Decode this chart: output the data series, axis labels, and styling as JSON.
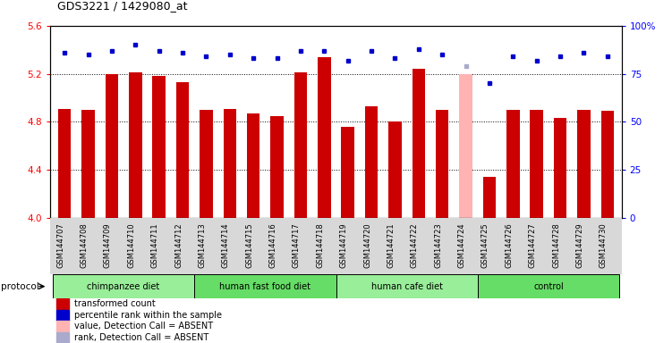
{
  "title": "GDS3221 / 1429080_at",
  "samples": [
    "GSM144707",
    "GSM144708",
    "GSM144709",
    "GSM144710",
    "GSM144711",
    "GSM144712",
    "GSM144713",
    "GSM144714",
    "GSM144715",
    "GSM144716",
    "GSM144717",
    "GSM144718",
    "GSM144719",
    "GSM144720",
    "GSM144721",
    "GSM144722",
    "GSM144723",
    "GSM144724",
    "GSM144725",
    "GSM144726",
    "GSM144727",
    "GSM144728",
    "GSM144729",
    "GSM144730"
  ],
  "bar_values": [
    4.91,
    4.9,
    5.2,
    5.21,
    5.18,
    5.13,
    4.9,
    4.91,
    4.87,
    4.85,
    5.21,
    5.34,
    4.76,
    4.93,
    4.8,
    5.24,
    4.9,
    5.2,
    4.34,
    4.9,
    4.9,
    4.83,
    4.9,
    4.89
  ],
  "bar_colors": [
    "#cc0000",
    "#cc0000",
    "#cc0000",
    "#cc0000",
    "#cc0000",
    "#cc0000",
    "#cc0000",
    "#cc0000",
    "#cc0000",
    "#cc0000",
    "#cc0000",
    "#cc0000",
    "#cc0000",
    "#cc0000",
    "#cc0000",
    "#cc0000",
    "#cc0000",
    "#ffb3b3",
    "#cc0000",
    "#cc0000",
    "#cc0000",
    "#cc0000",
    "#cc0000",
    "#cc0000"
  ],
  "rank_values": [
    86,
    85,
    87,
    90,
    87,
    86,
    84,
    85,
    83,
    83,
    87,
    87,
    82,
    87,
    83,
    88,
    85,
    79,
    70,
    84,
    82,
    84,
    86,
    84
  ],
  "rank_colors": [
    "#0000cc",
    "#0000cc",
    "#0000cc",
    "#0000cc",
    "#0000cc",
    "#0000cc",
    "#0000cc",
    "#0000cc",
    "#0000cc",
    "#0000cc",
    "#0000cc",
    "#0000cc",
    "#0000cc",
    "#0000cc",
    "#0000cc",
    "#0000cc",
    "#0000cc",
    "#aaaacc",
    "#0000cc",
    "#0000cc",
    "#0000cc",
    "#0000cc",
    "#0000cc",
    "#0000cc"
  ],
  "ylim_left": [
    4.0,
    5.6
  ],
  "ylim_right": [
    0,
    100
  ],
  "yticks_left": [
    4.0,
    4.4,
    4.8,
    5.2,
    5.6
  ],
  "yticks_right": [
    0,
    25,
    50,
    75,
    100
  ],
  "groups": [
    {
      "label": "chimpanzee diet",
      "start": 0,
      "end": 6,
      "color": "#99ee99"
    },
    {
      "label": "human fast food diet",
      "start": 6,
      "end": 12,
      "color": "#66dd66"
    },
    {
      "label": "human cafe diet",
      "start": 12,
      "end": 18,
      "color": "#99ee99"
    },
    {
      "label": "control",
      "start": 18,
      "end": 24,
      "color": "#66dd66"
    }
  ],
  "protocol_label": "protocol",
  "bar_bottom": 4.0,
  "legend_items": [
    {
      "color": "#cc0000",
      "label": "transformed count",
      "shape": "rect"
    },
    {
      "color": "#0000cc",
      "label": "percentile rank within the sample",
      "shape": "rect"
    },
    {
      "color": "#ffb3b3",
      "label": "value, Detection Call = ABSENT",
      "shape": "rect"
    },
    {
      "color": "#aaaacc",
      "label": "rank, Detection Call = ABSENT",
      "shape": "rect"
    }
  ]
}
